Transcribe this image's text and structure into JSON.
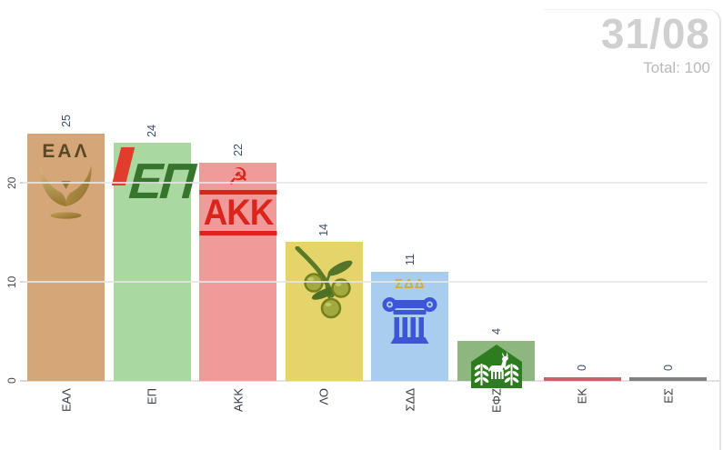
{
  "header": {
    "date": "31/08",
    "total": "Total: 100"
  },
  "chart_data": {
    "type": "bar",
    "title": "",
    "xlabel": "",
    "ylabel": "",
    "categories": [
      "ΕΑΛ",
      "ΕΠ",
      "ΑΚΚ",
      "ΛΟ",
      "ΣΔΔ",
      "ΕΦΖ",
      "ΕΚ",
      "ΕΣ"
    ],
    "values": [
      25,
      24,
      22,
      14,
      11,
      4,
      0,
      0
    ],
    "ylim": [
      0,
      25
    ],
    "y_ticks": [
      0,
      10,
      20
    ],
    "grid": "horizontal",
    "legend": "none",
    "annotation_total": 100,
    "parties": [
      {
        "label": "ΕΑΛ",
        "value": 25,
        "color": "#d5a678",
        "logo_text": "ΕΑΛ",
        "logo": "laurel-emblem"
      },
      {
        "label": "ΕΠ",
        "value": 24,
        "color": "#a9d8a0",
        "logo_text": "ΕΠ",
        "logo": "red-accent-green-letters"
      },
      {
        "label": "ΑΚΚ",
        "value": 22,
        "color": "#f09a9a",
        "logo_text": "ΑΚΚ",
        "logo": "hammer-sickle-stripes",
        "hammer_sickle": "☭"
      },
      {
        "label": "ΛΟ",
        "value": 14,
        "color": "#e5d46a",
        "logo_text": "",
        "logo": "olive-branch"
      },
      {
        "label": "ΣΔΔ",
        "value": 11,
        "color": "#a8cdef",
        "logo_text": "ΣΔΔ",
        "logo": "ionic-column"
      },
      {
        "label": "ΕΦΖ",
        "value": 4,
        "color": "#8eb67f",
        "logo_text": "",
        "logo": "green-pentagon-donkey"
      },
      {
        "label": "ΕΚ",
        "value": 0,
        "color": "#c5646b",
        "logo_text": "",
        "logo": "none"
      },
      {
        "label": "ΕΣ",
        "value": 0,
        "color": "#808080",
        "logo_text": "",
        "logo": "none"
      }
    ]
  }
}
